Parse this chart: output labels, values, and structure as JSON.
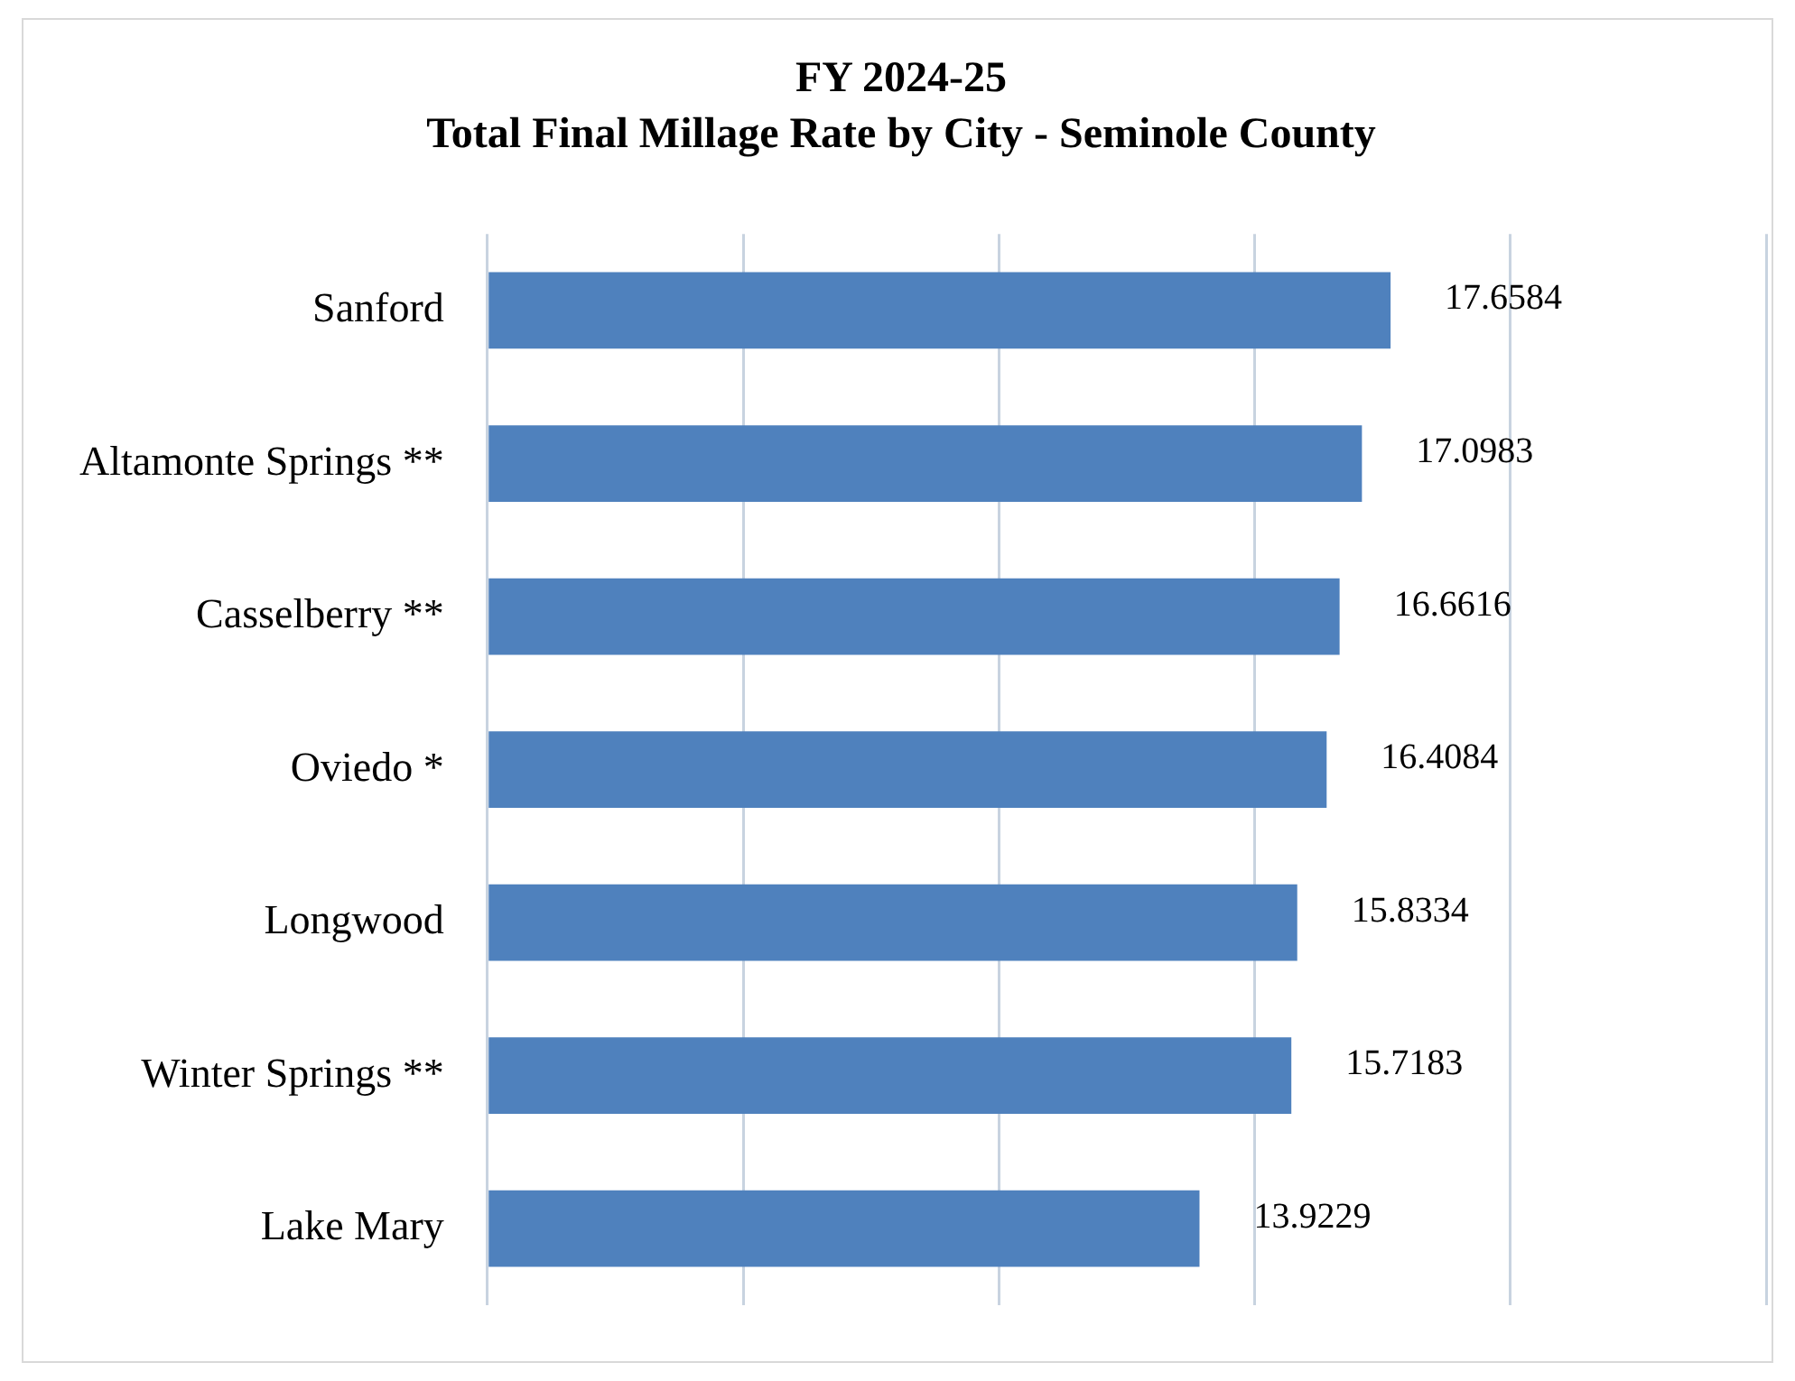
{
  "chart_data": {
    "type": "bar",
    "orientation": "horizontal",
    "title": "FY 2024-25",
    "subtitle": "Total Final Millage Rate by City - Seminole County",
    "categories": [
      "Sanford",
      "Altamonte Springs **",
      "Casselberry **",
      "Oviedo *",
      "Longwood",
      "Winter Springs **",
      "Lake Mary"
    ],
    "values": [
      17.6584,
      17.0983,
      16.6616,
      16.4084,
      15.8334,
      15.7183,
      13.9229
    ],
    "color": "#4f81bd",
    "xlim": [
      0,
      25
    ],
    "xticks": [
      {
        "value": 0,
        "label": null
      },
      {
        "value": 5,
        "label": null
      },
      {
        "value": 10,
        "label": null
      },
      {
        "value": 15,
        "label": null
      },
      {
        "value": 20,
        "label": null
      },
      {
        "value": 25,
        "label": null
      }
    ],
    "grid": "x",
    "tick_labels": "y",
    "data_labels": true
  }
}
